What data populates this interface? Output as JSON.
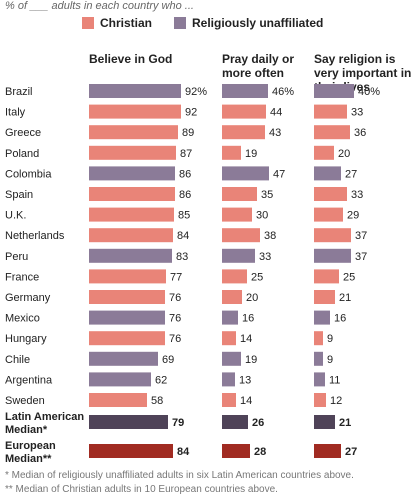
{
  "subtitle": "% of ___ adults in each country who ...",
  "colors": {
    "christian": "#e98478",
    "unaffiliated": "#8b7b98",
    "latin_median": "#4f4358",
    "european_median": "#a12b22"
  },
  "legend": {
    "christian": "Christian",
    "unaffiliated": "Religiously unaffiliated"
  },
  "chart_data": {
    "type": "bar",
    "subtitle": "% of ___ adults in each country who ...",
    "columns": [
      "Believe in God",
      "Pray daily or more often",
      "Say religion is very important in their lives"
    ],
    "rows": [
      {
        "label": "Brazil",
        "group": "unaffiliated",
        "values": [
          92,
          46,
          40
        ],
        "first": true
      },
      {
        "label": "Italy",
        "group": "christian",
        "values": [
          92,
          44,
          33
        ]
      },
      {
        "label": "Greece",
        "group": "christian",
        "values": [
          89,
          43,
          36
        ]
      },
      {
        "label": "Poland",
        "group": "christian",
        "values": [
          87,
          19,
          20
        ]
      },
      {
        "label": "Colombia",
        "group": "unaffiliated",
        "values": [
          86,
          47,
          27
        ]
      },
      {
        "label": "Spain",
        "group": "christian",
        "values": [
          86,
          35,
          33
        ]
      },
      {
        "label": "U.K.",
        "group": "christian",
        "values": [
          85,
          30,
          29
        ]
      },
      {
        "label": "Netherlands",
        "group": "christian",
        "values": [
          84,
          38,
          37
        ]
      },
      {
        "label": "Peru",
        "group": "unaffiliated",
        "values": [
          83,
          33,
          37
        ]
      },
      {
        "label": "France",
        "group": "christian",
        "values": [
          77,
          25,
          25
        ]
      },
      {
        "label": "Germany",
        "group": "christian",
        "values": [
          76,
          20,
          21
        ]
      },
      {
        "label": "Mexico",
        "group": "unaffiliated",
        "values": [
          76,
          16,
          16
        ]
      },
      {
        "label": "Hungary",
        "group": "christian",
        "values": [
          76,
          14,
          9
        ]
      },
      {
        "label": "Chile",
        "group": "unaffiliated",
        "values": [
          69,
          19,
          9
        ]
      },
      {
        "label": "Argentina",
        "group": "unaffiliated",
        "values": [
          62,
          13,
          11
        ]
      },
      {
        "label": "Sweden",
        "group": "christian",
        "values": [
          58,
          14,
          12
        ]
      }
    ],
    "medians": [
      {
        "label": "Latin American Median*",
        "group": "latin_median",
        "values": [
          79,
          26,
          21
        ]
      },
      {
        "label": "European Median**",
        "group": "european_median",
        "values": [
          84,
          28,
          27
        ]
      }
    ],
    "value_suffix": "%"
  },
  "footnotes": [
    "* Median of religiously unaffiliated adults in six Latin American countries above.",
    "** Median of Christian adults in 10 European countries above."
  ]
}
